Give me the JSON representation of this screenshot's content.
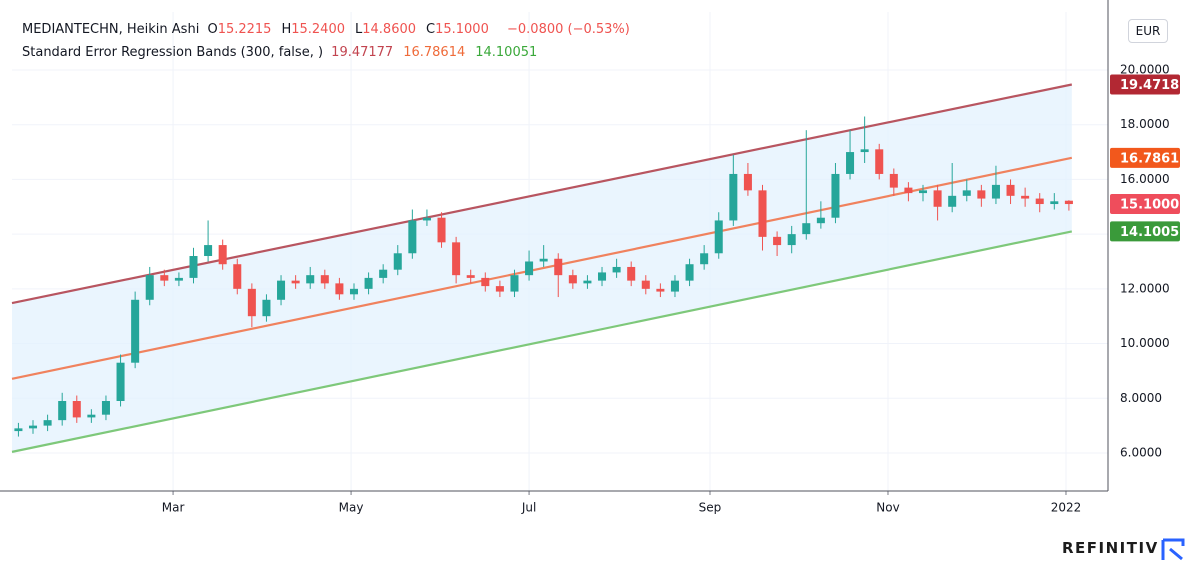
{
  "chart_data": {
    "type": "candlestick",
    "title": "MEDIANTECHN, Heikin Ashi",
    "ohlc": [
      {
        "label": "O",
        "value": "15.2215"
      },
      {
        "label": "H",
        "value": "15.2400"
      },
      {
        "label": "L",
        "value": "14.8600"
      },
      {
        "label": "C",
        "value": "15.1000"
      }
    ],
    "change": "−0.0800 (−0.53%)",
    "indicator": {
      "name": "Standard Error Regression Bands (300, false, )",
      "values": [
        "19.47177",
        "16.78614",
        "14.10051"
      ],
      "colors": [
        "#c2444f",
        "#ef6b3a",
        "#3aa83a"
      ]
    },
    "currency": "EUR",
    "brand": "REFINITIV",
    "x": [
      6,
      11,
      16,
      21,
      26,
      31,
      36,
      41,
      46,
      51,
      56,
      61,
      66,
      71,
      76,
      81,
      86,
      91,
      96,
      101,
      106,
      111,
      116,
      121,
      126,
      131,
      136,
      141,
      146,
      151,
      156,
      161,
      166,
      171,
      176,
      181,
      186,
      191,
      196,
      201,
      206,
      211,
      216,
      221,
      226,
      231,
      236,
      241,
      246,
      251,
      256,
      261,
      266,
      271,
      276,
      281,
      286,
      291,
      296,
      301,
      306,
      311,
      316,
      321,
      326,
      331,
      336,
      341,
      346,
      351,
      356,
      361,
      366
    ],
    "open": [
      6.8,
      6.9,
      7.0,
      7.2,
      7.9,
      7.3,
      7.4,
      7.9,
      9.3,
      11.6,
      12.5,
      12.3,
      12.4,
      13.2,
      13.6,
      12.9,
      12.0,
      11.0,
      11.6,
      12.3,
      12.2,
      12.5,
      12.2,
      11.8,
      12.0,
      12.4,
      12.7,
      13.3,
      14.5,
      14.6,
      13.7,
      12.5,
      12.4,
      12.1,
      11.9,
      12.5,
      13.0,
      13.1,
      12.5,
      12.2,
      12.3,
      12.6,
      12.8,
      12.3,
      12.0,
      11.9,
      12.3,
      12.9,
      13.3,
      14.5,
      16.2,
      15.6,
      13.9,
      13.6,
      14.0,
      14.4,
      14.6,
      16.2,
      17.0,
      17.1,
      16.2,
      15.7,
      15.5,
      15.6,
      15.0,
      15.4,
      15.6,
      15.3,
      15.8,
      15.4,
      15.3,
      15.1,
      15.2215
    ],
    "high": [
      7.1,
      7.2,
      7.4,
      8.2,
      8.1,
      7.6,
      8.1,
      9.6,
      11.9,
      12.8,
      12.7,
      12.6,
      13.5,
      14.5,
      13.8,
      13.1,
      12.2,
      11.8,
      12.5,
      12.5,
      12.8,
      12.7,
      12.4,
      12.2,
      12.6,
      12.9,
      13.6,
      14.9,
      14.9,
      14.8,
      13.9,
      12.7,
      12.6,
      12.3,
      12.7,
      13.4,
      13.6,
      13.3,
      12.7,
      12.5,
      12.8,
      13.1,
      13.0,
      12.5,
      12.2,
      12.5,
      13.1,
      13.6,
      14.8,
      16.9,
      16.6,
      15.8,
      14.1,
      14.3,
      17.8,
      15.2,
      16.6,
      17.8,
      18.3,
      17.3,
      16.4,
      15.9,
      15.8,
      15.8,
      16.6,
      16.0,
      15.8,
      16.5,
      16.0,
      15.7,
      15.5,
      15.5,
      15.24
    ],
    "low": [
      6.6,
      6.7,
      6.8,
      7.0,
      7.1,
      7.1,
      7.2,
      7.7,
      9.1,
      11.4,
      12.1,
      12.1,
      12.2,
      13.0,
      12.7,
      11.8,
      10.6,
      10.8,
      11.4,
      12.0,
      12.0,
      12.0,
      11.6,
      11.6,
      11.8,
      12.2,
      12.5,
      13.1,
      14.3,
      13.5,
      12.2,
      12.2,
      11.9,
      11.7,
      11.7,
      12.3,
      12.8,
      11.7,
      12.0,
      12.0,
      12.1,
      12.4,
      12.1,
      11.8,
      11.7,
      11.7,
      12.1,
      12.7,
      13.1,
      14.3,
      15.4,
      13.4,
      13.2,
      13.3,
      13.8,
      14.2,
      14.4,
      16.0,
      16.6,
      16.0,
      15.4,
      15.2,
      15.2,
      14.5,
      14.8,
      15.2,
      15.0,
      15.1,
      15.1,
      15.0,
      14.8,
      14.9,
      14.86
    ],
    "close": [
      6.9,
      7.0,
      7.2,
      7.9,
      7.3,
      7.4,
      7.9,
      9.3,
      11.6,
      12.5,
      12.3,
      12.4,
      13.2,
      13.6,
      12.9,
      12.0,
      11.0,
      11.6,
      12.3,
      12.2,
      12.5,
      12.2,
      11.8,
      12.0,
      12.4,
      12.7,
      13.3,
      14.5,
      14.6,
      13.7,
      12.5,
      12.4,
      12.1,
      11.9,
      12.5,
      13.0,
      13.1,
      12.5,
      12.2,
      12.3,
      12.6,
      12.8,
      12.3,
      12.0,
      11.9,
      12.3,
      12.9,
      13.3,
      14.5,
      16.2,
      15.6,
      13.9,
      13.6,
      14.0,
      14.4,
      14.6,
      16.2,
      17.0,
      17.1,
      16.2,
      15.7,
      15.5,
      15.6,
      15.0,
      15.4,
      15.6,
      15.3,
      15.8,
      15.4,
      15.3,
      15.1,
      15.2,
      15.1
    ],
    "up_color": "#26a69a",
    "down_color": "#ef5350",
    "series": [
      {
        "x": [
          3.8,
          367
        ],
        "values": [
          11.48,
          19.47
        ],
        "color": "#b85560"
      },
      {
        "x": [
          3.8,
          367
        ],
        "values": [
          8.71,
          16.79
        ],
        "color": "#f0825e"
      },
      {
        "x": [
          3.8,
          367
        ],
        "values": [
          6.04,
          14.1
        ],
        "color": "#7ec87a"
      }
    ],
    "band_fill": "#e3f2fd",
    "price_tags": [
      {
        "label": "19.4718",
        "value": 19.4718,
        "color": "#b22833"
      },
      {
        "label": "16.7861",
        "value": 16.7861,
        "color": "#f2581c"
      },
      {
        "label": "15.1000",
        "value": 15.1,
        "color": "#ef4d5c"
      },
      {
        "label": "14.1005",
        "value": 14.1005,
        "color": "#3a9a3a"
      }
    ],
    "xlim": [
      3.8,
      379.4
    ],
    "xticks": [
      {
        "value": 59,
        "label": "Mar"
      },
      {
        "value": 120,
        "label": "May"
      },
      {
        "value": 181,
        "label": "Jul"
      },
      {
        "value": 243,
        "label": "Sep"
      },
      {
        "value": 304,
        "label": "Nov"
      },
      {
        "value": 365,
        "label": "2022"
      }
    ],
    "ylim": [
      4.61,
      22.12
    ],
    "yticks": [
      {
        "value": 6,
        "label": "6.0000"
      },
      {
        "value": 8,
        "label": "8.0000"
      },
      {
        "value": 10,
        "label": "10.0000"
      },
      {
        "value": 12,
        "label": "12.0000"
      },
      {
        "value": 14,
        "label": "14.0000"
      },
      {
        "value": 16,
        "label": "16.0000"
      },
      {
        "value": 18,
        "label": "18.0000"
      },
      {
        "value": 20,
        "label": "20.0000"
      }
    ],
    "grid": true
  }
}
